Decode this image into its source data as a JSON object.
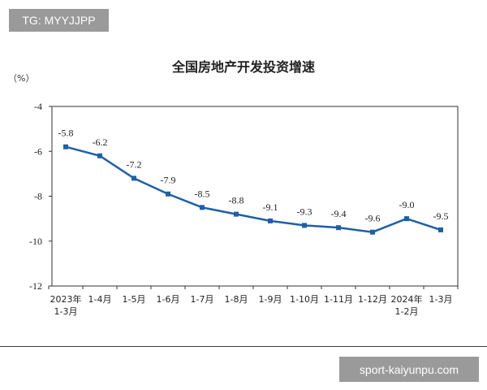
{
  "watermark_top": "TG: MYYJJPP",
  "watermark_bottom": "sport-kaiyunpu.com",
  "chart_data": {
    "type": "line",
    "title": "全国房地产开发投资增速",
    "ylabel": "（%）",
    "xlabel": "",
    "ylim": [
      -12,
      -4
    ],
    "yticks": [
      -4,
      -6,
      -8,
      -10,
      -12
    ],
    "grid": false,
    "legend": "none",
    "line_color": "#1f5fa8",
    "categories": [
      [
        "2023年",
        "1-3月"
      ],
      [
        "1-4月"
      ],
      [
        "1-5月"
      ],
      [
        "1-6月"
      ],
      [
        "1-7月"
      ],
      [
        "1-8月"
      ],
      [
        "1-9月"
      ],
      [
        "1-10月"
      ],
      [
        "1-11月"
      ],
      [
        "1-12月"
      ],
      [
        "2024年",
        "1-2月"
      ],
      [
        "1-3月"
      ]
    ],
    "values": [
      -5.8,
      -6.2,
      -7.2,
      -7.9,
      -8.5,
      -8.8,
      -9.1,
      -9.3,
      -9.4,
      -9.6,
      -9.0,
      -9.5
    ],
    "labels": [
      "-5.8",
      "-6.2",
      "-7.2",
      "-7.9",
      "-8.5",
      "-8.8",
      "-9.1",
      "-9.3",
      "-9.4",
      "-9.6",
      "-9.0",
      "-9.5"
    ]
  }
}
